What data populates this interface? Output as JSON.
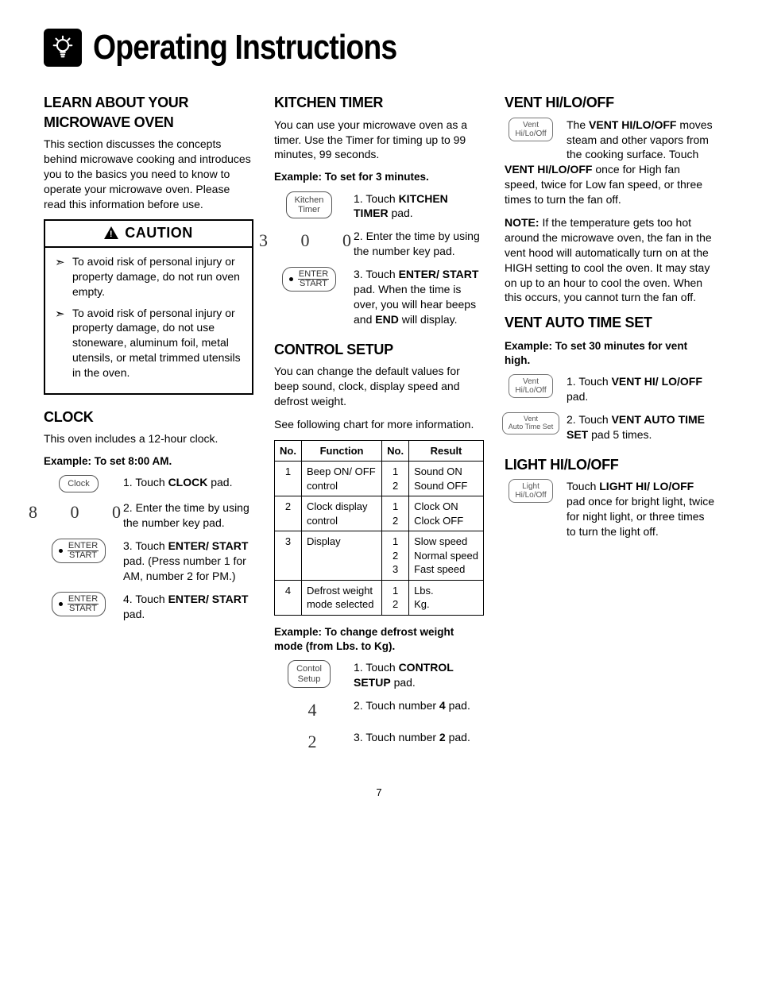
{
  "page": {
    "title": "Operating Instructions",
    "number": "7"
  },
  "col1": {
    "learn": {
      "heading": "LEARN ABOUT YOUR MICROWAVE OVEN",
      "body": "This section discusses the concepts behind microwave cooking and introduces you to the basics you need to know to operate your microwave oven. Please read this information before use."
    },
    "caution": {
      "heading": "CAUTION",
      "items": [
        "To avoid risk of personal injury or property damage, do not run oven empty.",
        "To avoid risk of personal injury or property damage, do not use stoneware, aluminum foil, metal utensils, or metal trimmed utensils in the oven."
      ]
    },
    "clock": {
      "heading": "CLOCK",
      "intro": "This oven includes a 12-hour clock.",
      "example_head": "Example: To set 8:00 AM.",
      "pad_clock": "Clock",
      "digits": "800",
      "steps": {
        "s1_pre": "1. Touch ",
        "s1_bold": "CLOCK",
        "s1_post": " pad.",
        "s2": "2. Enter the time by using the number key pad.",
        "s3_pre": "3. Touch ",
        "s3_bold": "ENTER/ START",
        "s3_post": " pad. (Press number 1 for AM, number 2 for PM.)",
        "s4_pre": "4. Touch ",
        "s4_bold": "ENTER/ START",
        "s4_post": " pad."
      },
      "enter_label_top": "ENTER",
      "enter_label_bot": "START"
    }
  },
  "col2": {
    "timer": {
      "heading": "KITCHEN TIMER",
      "body": "You can use your microwave oven as a timer. Use the Timer for timing up to 99 minutes, 99 seconds.",
      "example_head": "Example: To set for 3 minutes.",
      "pad_label": "Kitchen\nTimer",
      "digits": "300",
      "steps": {
        "s1_pre": "1. Touch ",
        "s1_bold": "KITCHEN TIMER",
        "s1_post": " pad.",
        "s2": "2. Enter the time by using the number key pad.",
        "s3_pre": "3. Touch ",
        "s3_bold": "ENTER/ START",
        "s3_post": " pad. When the time is over, you will hear beeps and ",
        "s3_bold2": "END",
        "s3_post2": " will display."
      }
    },
    "control": {
      "heading": "CONTROL SETUP",
      "body1": "You can change the default values for beep sound, clock, display speed and defrost weight.",
      "body2": "See following chart for more information.",
      "th_no": "No.",
      "th_func": "Function",
      "th_no2": "No.",
      "th_res": "Result",
      "rows": [
        {
          "no": "1",
          "func": "Beep ON/ OFF control",
          "sub": "1\n2",
          "res": "Sound ON\nSound OFF"
        },
        {
          "no": "2",
          "func": "Clock display control",
          "sub": "1\n2",
          "res": "Clock ON\nClock OFF"
        },
        {
          "no": "3",
          "func": "Display",
          "sub": "1\n2\n3",
          "res": "Slow speed\nNormal speed\nFast speed"
        },
        {
          "no": "4",
          "func": "Defrost weight mode selected",
          "sub": "1\n2",
          "res": "Lbs.\nKg."
        }
      ],
      "example_head": "Example: To change defrost weight mode (from Lbs. to Kg).",
      "pad_label": "Contol\nSetup",
      "d4": "4",
      "d2": "2",
      "steps": {
        "s1_pre": "1. Touch ",
        "s1_bold": "CONTROL SETUP",
        "s1_post": " pad.",
        "s2_pre": "2. Touch number ",
        "s2_bold": "4",
        "s2_post": " pad.",
        "s3_pre": "3. Touch number ",
        "s3_bold": "2",
        "s3_post": " pad."
      }
    }
  },
  "col3": {
    "vent": {
      "heading": "VENT HI/LO/OFF",
      "pad_label": "Vent\nHi/Lo/Off",
      "p1_pre": "The ",
      "p1_bold": "VENT HI/LO/OFF",
      "p1_mid": " moves steam and other vapors from the cooking surface. Touch ",
      "p1_bold2": "VENT HI/LO/OFF",
      "p1_post": " once for High fan speed, twice for Low fan speed, or three times to turn the fan off.",
      "note_bold": "NOTE:",
      "note": " If the temperature gets too hot around the microwave oven, the fan in the vent hood will automatically turn on at the HIGH setting to cool the oven. It may stay on up to an hour to cool the oven. When this occurs, you cannot turn the fan off."
    },
    "vats": {
      "heading": "VENT AUTO TIME SET",
      "example_head": "Example: To set 30 minutes for vent high.",
      "pad1": "Vent\nHi/Lo/Off",
      "pad2": "Vent\nAuto Time Set",
      "s1_pre": "1. Touch ",
      "s1_bold": "VENT HI/ LO/OFF",
      "s1_post": " pad.",
      "s2_pre": "2. Touch ",
      "s2_bold": "VENT AUTO TIME SET",
      "s2_post": " pad 5 times."
    },
    "light": {
      "heading": "LIGHT HI/LO/OFF",
      "pad_label": "Light\nHi/Lo/Off",
      "p_pre": "Touch ",
      "p_bold": "LIGHT HI/ LO/OFF",
      "p_post": " pad once for bright light, twice for night light, or three times to turn the light off."
    }
  }
}
